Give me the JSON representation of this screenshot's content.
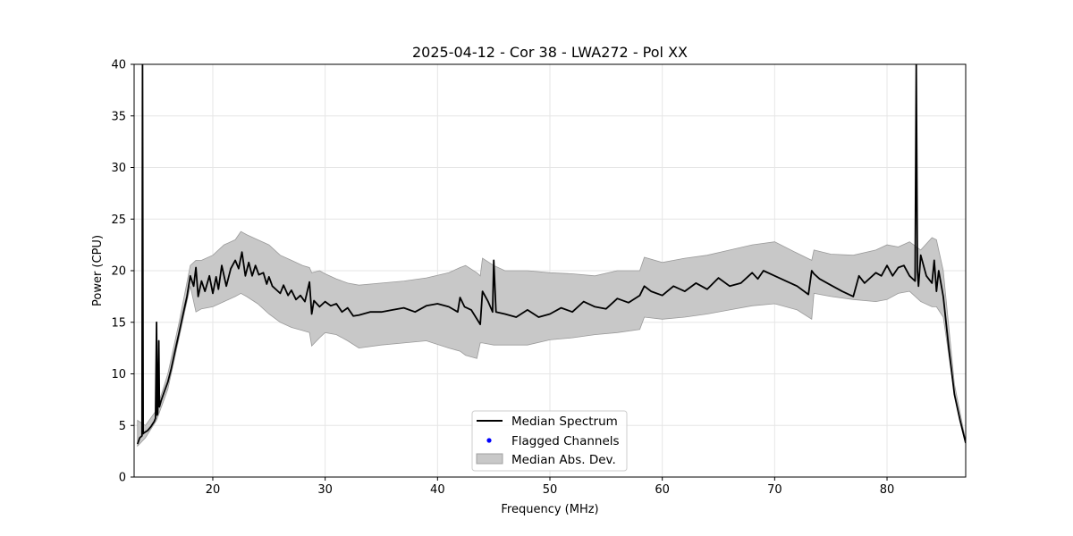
{
  "chart_data": {
    "type": "line",
    "title": "2025-04-12 - Cor 38 - LWA272 - Pol XX",
    "xlabel": "Frequency (MHz)",
    "ylabel": "Power (CPU)",
    "xlim": [
      13,
      87
    ],
    "ylim": [
      0,
      40
    ],
    "xticks": [
      20,
      30,
      40,
      50,
      60,
      70,
      80
    ],
    "yticks": [
      0,
      5,
      10,
      15,
      20,
      25,
      30,
      35,
      40
    ],
    "grid": true,
    "legend": {
      "placement": "lower-center",
      "entries": [
        {
          "label": "Median Spectrum",
          "kind": "line",
          "color": "#000000"
        },
        {
          "label": "Flagged Channels",
          "kind": "point",
          "color": "#0000ff"
        },
        {
          "label": "Median Abs. Dev.",
          "kind": "band",
          "color": "#c8c8c8"
        }
      ]
    },
    "series": [
      {
        "name": "Median Spectrum",
        "color": "#000000",
        "x": [
          13.3,
          13.5,
          13.7,
          13.75,
          13.8,
          13.9,
          14.2,
          14.5,
          14.8,
          14.9,
          15.0,
          15.05,
          15.1,
          15.2,
          15.25,
          15.3,
          15.4,
          15.7,
          16.0,
          16.3,
          16.6,
          17.0,
          17.3,
          17.7,
          18.0,
          18.3,
          18.5,
          18.7,
          19.0,
          19.3,
          19.7,
          20.0,
          20.3,
          20.5,
          20.8,
          21.2,
          21.6,
          22.0,
          22.3,
          22.6,
          22.9,
          23.2,
          23.5,
          23.8,
          24.1,
          24.5,
          24.8,
          25.0,
          25.3,
          25.7,
          26.0,
          26.3,
          26.7,
          27.0,
          27.4,
          27.8,
          28.2,
          28.6,
          28.8,
          29.0,
          29.5,
          30.0,
          30.5,
          31.0,
          31.5,
          32.0,
          32.5,
          33.0,
          34.0,
          35.0,
          36.0,
          37.0,
          38.0,
          39.0,
          40.0,
          41.0,
          41.8,
          42.0,
          42.4,
          43.0,
          43.8,
          44.0,
          44.5,
          44.9,
          45.0,
          45.2,
          46.0,
          47.0,
          48.0,
          49.0,
          50.0,
          51.0,
          52.0,
          53.0,
          54.0,
          55.0,
          56.0,
          57.0,
          58.0,
          58.4,
          59.0,
          60.0,
          61.0,
          62.0,
          63.0,
          64.0,
          65.0,
          66.0,
          67.0,
          68.0,
          68.5,
          69.0,
          70.0,
          71.0,
          72.0,
          73.0,
          73.3,
          73.5,
          74.0,
          75.0,
          76.0,
          77.0,
          77.5,
          78.0,
          79.0,
          79.5,
          80.0,
          80.5,
          81.0,
          81.5,
          82.0,
          82.5,
          82.6,
          82.7,
          82.8,
          83.0,
          83.5,
          84.0,
          84.2,
          84.4,
          84.6,
          85.0,
          85.5,
          86.0,
          86.5,
          87.0
        ],
        "y": [
          3.2,
          3.8,
          4.0,
          40.0,
          4.2,
          4.3,
          4.5,
          4.9,
          5.4,
          5.7,
          15.0,
          6.0,
          6.2,
          13.2,
          6.8,
          7.0,
          7.4,
          8.3,
          9.2,
          10.5,
          12.0,
          14.0,
          15.5,
          17.5,
          19.5,
          18.5,
          20.3,
          17.5,
          19.0,
          18.0,
          19.5,
          17.8,
          19.4,
          18.2,
          20.5,
          18.5,
          20.2,
          21.0,
          20.2,
          21.8,
          19.5,
          20.8,
          19.5,
          20.5,
          19.6,
          19.8,
          18.7,
          19.4,
          18.5,
          18.1,
          17.8,
          18.6,
          17.6,
          18.1,
          17.2,
          17.6,
          17.0,
          18.9,
          15.8,
          17.1,
          16.5,
          17.0,
          16.6,
          16.8,
          16.0,
          16.4,
          15.6,
          15.7,
          16.0,
          16.0,
          16.2,
          16.4,
          16.0,
          16.6,
          16.8,
          16.5,
          16.0,
          17.4,
          16.5,
          16.2,
          14.8,
          18.0,
          17.0,
          16.0,
          21.0,
          16.0,
          15.8,
          15.5,
          16.2,
          15.5,
          15.8,
          16.4,
          16.0,
          17.0,
          16.5,
          16.3,
          17.3,
          16.9,
          17.6,
          18.5,
          18.0,
          17.6,
          18.5,
          18.0,
          18.8,
          18.2,
          19.3,
          18.5,
          18.8,
          19.8,
          19.2,
          20.0,
          19.5,
          19.0,
          18.5,
          17.7,
          20.0,
          19.7,
          19.2,
          18.6,
          18.0,
          17.5,
          19.5,
          18.8,
          19.8,
          19.5,
          20.5,
          19.5,
          20.3,
          20.5,
          19.5,
          19.0,
          40.0,
          20.0,
          18.5,
          21.5,
          19.5,
          18.8,
          21.0,
          18.0,
          20.0,
          17.5,
          12.5,
          8.0,
          5.5,
          3.3
        ]
      },
      {
        "name": "Median Abs. Dev.",
        "kind": "band",
        "color": "#c8c8c8",
        "x": [
          13.3,
          14.0,
          15.0,
          16.0,
          17.0,
          18.0,
          18.5,
          19.0,
          20.0,
          21.0,
          22.0,
          22.5,
          23.0,
          24.0,
          25.0,
          26.0,
          27.0,
          28.0,
          28.6,
          28.8,
          29.5,
          30.0,
          31.0,
          32.0,
          33.0,
          35.0,
          37.0,
          39.0,
          41.0,
          42.0,
          42.5,
          43.5,
          43.8,
          44.0,
          45.0,
          46.0,
          48.0,
          50.0,
          52.0,
          54.0,
          56.0,
          58.0,
          58.4,
          60.0,
          62.0,
          64.0,
          66.0,
          68.0,
          70.0,
          72.0,
          73.3,
          73.5,
          75.0,
          77.0,
          79.0,
          80.0,
          81.0,
          82.0,
          83.0,
          84.0,
          84.4,
          85.0,
          86.0,
          87.0
        ],
        "lower": [
          3.0,
          3.8,
          5.5,
          8.5,
          13.5,
          18.5,
          16.0,
          16.3,
          16.5,
          17.0,
          17.5,
          17.8,
          17.5,
          16.8,
          15.8,
          15.0,
          14.5,
          14.2,
          14.0,
          12.7,
          13.5,
          14.0,
          13.8,
          13.2,
          12.5,
          12.8,
          13.0,
          13.2,
          12.5,
          12.2,
          11.8,
          11.5,
          13.0,
          13.0,
          12.8,
          12.8,
          12.8,
          13.3,
          13.5,
          13.8,
          14.0,
          14.3,
          15.5,
          15.3,
          15.5,
          15.8,
          16.2,
          16.6,
          16.8,
          16.2,
          15.3,
          17.8,
          17.5,
          17.2,
          17.0,
          17.2,
          17.8,
          18.0,
          17.0,
          16.5,
          16.5,
          15.5,
          8.0,
          3.2
        ],
        "upper": [
          5.5,
          5.0,
          6.5,
          10.0,
          15.0,
          20.5,
          21.0,
          21.0,
          21.5,
          22.5,
          23.0,
          23.8,
          23.5,
          23.0,
          22.5,
          21.5,
          21.0,
          20.5,
          20.3,
          19.8,
          20.0,
          19.7,
          19.2,
          18.8,
          18.6,
          18.8,
          19.0,
          19.3,
          19.8,
          20.3,
          20.5,
          19.8,
          19.5,
          21.2,
          20.5,
          20.0,
          20.0,
          19.8,
          19.7,
          19.5,
          20.0,
          20.0,
          21.3,
          20.8,
          21.2,
          21.5,
          22.0,
          22.5,
          22.8,
          21.7,
          21.0,
          22.0,
          21.6,
          21.5,
          22.0,
          22.5,
          22.3,
          22.8,
          22.0,
          23.2,
          23.0,
          20.0,
          9.0,
          3.5
        ]
      },
      {
        "name": "Flagged Channels",
        "kind": "point",
        "color": "#0000ff",
        "x": [],
        "y": []
      }
    ]
  }
}
